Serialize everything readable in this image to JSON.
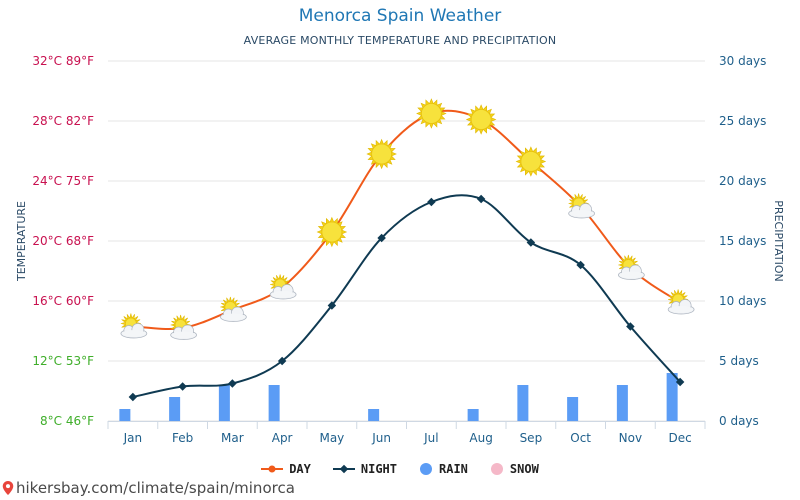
{
  "header": {
    "title": "Menorca Spain Weather",
    "subtitle": "AVERAGE MONTHLY TEMPERATURE AND PRECIPITATION"
  },
  "legend": {
    "day": "DAY",
    "night": "NIGHT",
    "rain": "RAIN",
    "snow": "SNOW"
  },
  "colors": {
    "day": "#f05a1a",
    "night": "#0f3a52",
    "rain": "#5b9cf5",
    "snow": "#f5b8c8",
    "grid": "#e4e4e4"
  },
  "footer": {
    "credit": "hikersbay.com/climate/spain/minorca"
  },
  "chart_data": {
    "type": "line",
    "title": "Menorca Spain Weather",
    "subtitle": "AVERAGE MONTHLY TEMPERATURE AND PRECIPITATION",
    "categories": [
      "Jan",
      "Feb",
      "Mar",
      "Apr",
      "May",
      "Jun",
      "Jul",
      "Aug",
      "Sep",
      "Oct",
      "Nov",
      "Dec"
    ],
    "ylabel_left": "TEMPERATURE",
    "ylabel_right": "PRECIPITATION",
    "ylim_left": [
      8,
      32
    ],
    "ylim_right": [
      0,
      30
    ],
    "left_ticks": [
      {
        "value": 8,
        "label": "8°C 46°F",
        "color": "#3fae2a"
      },
      {
        "value": 12,
        "label": "12°C 53°F",
        "color": "#3fae2a"
      },
      {
        "value": 16,
        "label": "16°C 60°F",
        "color": "#c8104f"
      },
      {
        "value": 20,
        "label": "20°C 68°F",
        "color": "#c8104f"
      },
      {
        "value": 24,
        "label": "24°C 75°F",
        "color": "#c8104f"
      },
      {
        "value": 28,
        "label": "28°C 82°F",
        "color": "#c8104f"
      },
      {
        "value": 32,
        "label": "32°C 89°F",
        "color": "#c8104f"
      }
    ],
    "right_ticks": [
      {
        "value": 0,
        "label": "0 days"
      },
      {
        "value": 5,
        "label": "5 days"
      },
      {
        "value": 10,
        "label": "10 days"
      },
      {
        "value": 15,
        "label": "15 days"
      },
      {
        "value": 20,
        "label": "20 days"
      },
      {
        "value": 25,
        "label": "25 days"
      },
      {
        "value": 30,
        "label": "30 days"
      }
    ],
    "series": [
      {
        "name": "DAY",
        "unit": "°C",
        "values": [
          14.3,
          14.2,
          15.4,
          16.9,
          20.6,
          25.8,
          28.5,
          28.1,
          25.3,
          22.3,
          18.2,
          15.9
        ]
      },
      {
        "name": "NIGHT",
        "unit": "°C",
        "values": [
          9.6,
          10.3,
          10.5,
          12.0,
          15.7,
          20.2,
          22.6,
          22.8,
          19.9,
          18.4,
          14.3,
          10.6
        ]
      },
      {
        "name": "RAIN",
        "unit": "days",
        "values": [
          1,
          2,
          3,
          3,
          0,
          1,
          0,
          1,
          3,
          2,
          3,
          4
        ]
      },
      {
        "name": "SNOW",
        "unit": "days",
        "values": [
          0,
          0,
          0,
          0,
          0,
          0,
          0,
          0,
          0,
          0,
          0,
          0
        ]
      }
    ],
    "weather_icons": [
      "partly-cloudy",
      "partly-cloudy",
      "partly-cloudy",
      "partly-cloudy",
      "sunny",
      "sunny",
      "sunny",
      "sunny",
      "sunny",
      "partly-cloudy",
      "partly-cloudy",
      "partly-cloudy"
    ]
  }
}
